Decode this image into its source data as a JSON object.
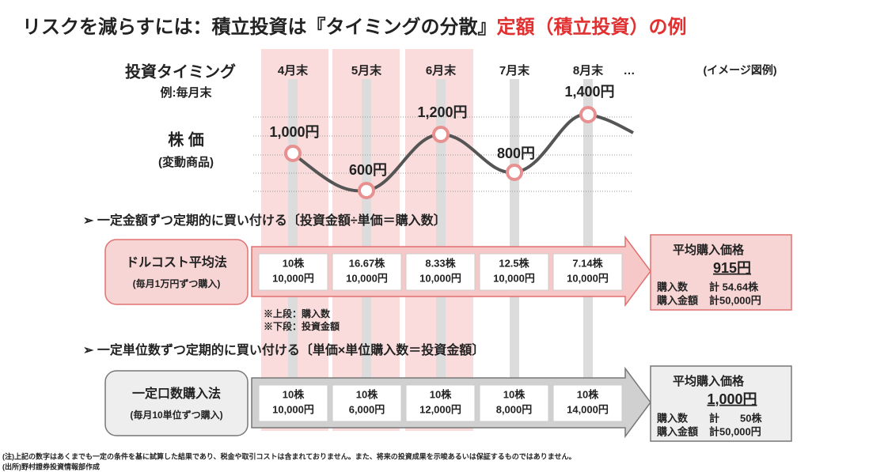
{
  "title": {
    "main": "リスクを減らすには：積立投資は『タイミングの分散』",
    "highlight": "定額（積立投資）の例"
  },
  "timing": {
    "label": "投資タイミング",
    "sublabel": "例:毎月末",
    "months": [
      "4月末",
      "5月末",
      "6月末",
      "7月末",
      "8月末"
    ],
    "ellipsis": "…",
    "note": "(イメージ図例)"
  },
  "price": {
    "label": "株 価",
    "sublabel": "(変動商品)",
    "points": [
      "1,000円",
      "600円",
      "1,200円",
      "800円",
      "1,400円"
    ]
  },
  "sections": [
    {
      "heading": "➢  一定金額ずつ定期的に買い付ける〔投資金額÷単価＝購入数〕",
      "method": {
        "name": "ドルコスト平均法",
        "sub": "(毎月1万円ずつ購入)"
      },
      "cells": [
        {
          "top": "10株",
          "bottom": "10,000円"
        },
        {
          "top": "16.67株",
          "bottom": "10,000円"
        },
        {
          "top": "8.33株",
          "bottom": "10,000円"
        },
        {
          "top": "12.5株",
          "bottom": "10,000円"
        },
        {
          "top": "7.14株",
          "bottom": "10,000円"
        }
      ],
      "summary": {
        "title": "平均購入価格",
        "price": "915円",
        "rows": [
          [
            "購入数",
            "計 54.64株"
          ],
          [
            "購入金額",
            "計50,000円"
          ]
        ]
      }
    },
    {
      "heading": "➢  一定単位数ずつ定期的に買い付ける〔単価×単位購入数＝投資金額〕",
      "method": {
        "name": "一定口数購入法",
        "sub": "(毎月10単位ずつ購入)"
      },
      "cells": [
        {
          "top": "10株",
          "bottom": "10,000円"
        },
        {
          "top": "10株",
          "bottom": "6,000円"
        },
        {
          "top": "10株",
          "bottom": "12,000円"
        },
        {
          "top": "10株",
          "bottom": "8,000円"
        },
        {
          "top": "10株",
          "bottom": "14,000円"
        }
      ],
      "summary": {
        "title": "平均購入価格",
        "price": "1,000円",
        "rows": [
          [
            "購入数",
            "計　　50株"
          ],
          [
            "購入金額",
            "計50,000円"
          ]
        ]
      }
    }
  ],
  "legend_notes": [
    "※上段：購入数",
    "※下段：投資金額"
  ],
  "footnotes": [
    "(注)上記の数字はあくまでも一定の条件を基に試算した結果であり、税金や取引コストは含まれておりません。また、将来の投資成果を示唆あるいは保証するものではありません。",
    "(出所)野村證券投資情報部作成"
  ]
}
